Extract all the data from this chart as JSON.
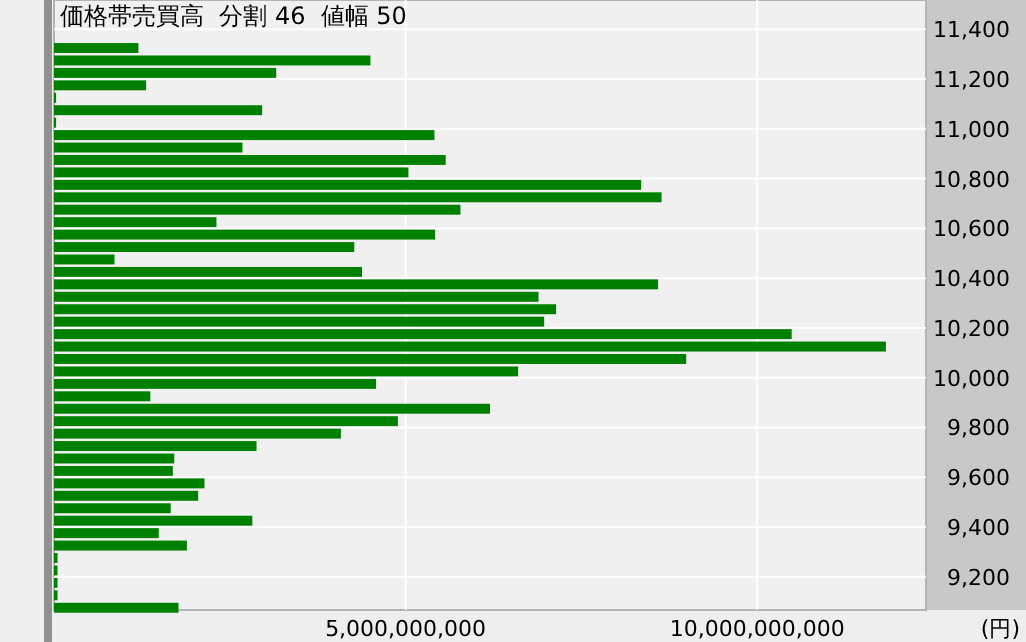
{
  "chart_data": {
    "type": "bar",
    "orientation": "horizontal",
    "title": "価格帯売買高  分割 46  値幅 50",
    "xlabel": "(円)",
    "color": "#008000",
    "grid": true,
    "x": [
      11325,
      11275,
      11225,
      11175,
      11125,
      11075,
      11025,
      10975,
      10925,
      10875,
      10825,
      10775,
      10725,
      10675,
      10625,
      10575,
      10525,
      10475,
      10425,
      10375,
      10325,
      10275,
      10225,
      10175,
      10125,
      10075,
      10025,
      9975,
      9925,
      9875,
      9825,
      9775,
      9725,
      9675,
      9625,
      9575,
      9525,
      9475,
      9425,
      9375,
      9325,
      9275,
      9225,
      9175,
      9125,
      9075
    ],
    "values": [
      1200000000,
      4500000000,
      3160000000,
      1310000000,
      30000000,
      2960000000,
      30000000,
      5410000000,
      2680000000,
      5570000000,
      5040000000,
      8350000000,
      8640000000,
      5780000000,
      2310000000,
      5420000000,
      4270000000,
      860000000,
      4380000000,
      8590000000,
      6890000000,
      7140000000,
      6970000000,
      10490000000,
      11830000000,
      8990000000,
      6600000000,
      4580000000,
      1370000000,
      6200000000,
      4890000000,
      4080000000,
      2880000000,
      1710000000,
      1690000000,
      2140000000,
      2050000000,
      1660000000,
      2820000000,
      1490000000,
      1890000000,
      50000000,
      50000000,
      50000000,
      50000000,
      1770000000
    ],
    "xlim": [
      0,
      12400000000
    ],
    "xticks": [
      {
        "value": 5000000000,
        "label": "5,000,000,000"
      },
      {
        "value": 10000000000,
        "label": "10,000,000,000"
      }
    ],
    "ylim": [
      9066,
      11518
    ],
    "yticks": [
      {
        "value": 9200,
        "label": "9,200"
      },
      {
        "value": 9400,
        "label": "9,400"
      },
      {
        "value": 9600,
        "label": "9,600"
      },
      {
        "value": 9800,
        "label": "9,800"
      },
      {
        "value": 10000,
        "label": "10,000"
      },
      {
        "value": 10200,
        "label": "10,200"
      },
      {
        "value": 10400,
        "label": "10,400"
      },
      {
        "value": 10600,
        "label": "10,600"
      },
      {
        "value": 10800,
        "label": "10,800"
      },
      {
        "value": 11000,
        "label": "11,000"
      },
      {
        "value": 11200,
        "label": "11,200"
      },
      {
        "value": 11400,
        "label": "11,400"
      }
    ]
  }
}
